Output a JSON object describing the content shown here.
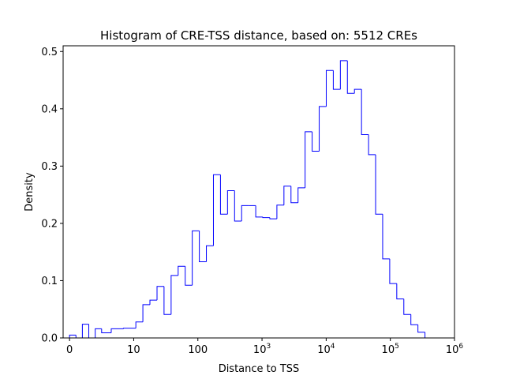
{
  "chart_data": {
    "type": "histogram",
    "title": "Histogram of CRE-TSS distance, based on: 5512 CREs",
    "xlabel": "Distance to TSS",
    "ylabel": "Density",
    "x_scale": "symlog",
    "xlim": [
      -1,
      1000000
    ],
    "ylim": [
      0,
      0.51
    ],
    "color": "#0000ff",
    "y_ticks": [
      {
        "value": 0.0,
        "label": "0.0"
      },
      {
        "value": 0.1,
        "label": "0.1"
      },
      {
        "value": 0.2,
        "label": "0.2"
      },
      {
        "value": 0.3,
        "label": "0.3"
      },
      {
        "value": 0.4,
        "label": "0.4"
      },
      {
        "value": 0.5,
        "label": "0.5"
      }
    ],
    "x_ticks": [
      {
        "value": 0,
        "label": "0"
      },
      {
        "value": 10,
        "label": "10"
      },
      {
        "value": 100,
        "label": "100"
      },
      {
        "value": 1000,
        "base": "10",
        "exp": "3"
      },
      {
        "value": 10000,
        "base": "10",
        "exp": "4"
      },
      {
        "value": 100000,
        "base": "10",
        "exp": "5"
      },
      {
        "value": 1000000,
        "base": "10",
        "exp": "6"
      }
    ],
    "bin_edges": [
      0,
      1,
      2,
      3,
      4,
      5,
      6.5,
      8.4,
      10.8,
      13.9,
      17.9,
      23.1,
      29.7,
      38.3,
      49.3,
      63.5,
      81.8,
      105.4,
      135.7,
      174.8,
      225.1,
      290.0,
      373.5,
      481.0,
      619.6,
      798.0,
      1027.8,
      1323.8,
      1705.0,
      2196.0,
      2828.4,
      3643.0,
      4692.1,
      6043.3,
      7783.6,
      10025.0,
      12912.0,
      16630.4,
      21419.7,
      27588.3,
      35533.1,
      45765.9,
      58945.6,
      75921.0,
      97785.0,
      125945.5,
      162215.6,
      208930.6,
      269097.0,
      346588.0,
      446398.0
    ],
    "values": [
      0.005,
      0.0,
      0.024,
      0.0,
      0.016,
      0.009,
      0.016,
      0.017,
      0.028,
      0.058,
      0.066,
      0.09,
      0.041,
      0.109,
      0.125,
      0.092,
      0.187,
      0.133,
      0.161,
      0.285,
      0.216,
      0.257,
      0.204,
      0.231,
      0.231,
      0.211,
      0.21,
      0.208,
      0.232,
      0.265,
      0.236,
      0.262,
      0.36,
      0.326,
      0.404,
      0.467,
      0.434,
      0.484,
      0.427,
      0.434,
      0.355,
      0.32,
      0.216,
      0.138,
      0.095,
      0.068,
      0.041,
      0.023,
      0.01,
      0.0
    ]
  }
}
